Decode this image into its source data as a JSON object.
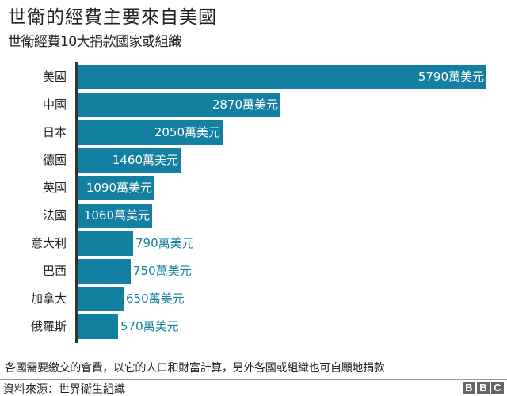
{
  "header": {
    "title": "世衛的經費主要來自美國",
    "subtitle": "世衛經費10大捐款國家或組織"
  },
  "footer": {
    "note": "各國需要繳交的會費，以它的人口和財富計算，另外各國或組織也可自願地捐款",
    "source": "資料來源：世界衛生組織",
    "logo_letters": [
      "B",
      "B",
      "C"
    ]
  },
  "colors": {
    "bar": "#1380a1",
    "label_inside": "#ffffff",
    "label_outside": "#1380a1",
    "axis": "#333333"
  },
  "chart_data": {
    "type": "bar",
    "orientation": "horizontal",
    "title": "世衛的經費主要來自美國",
    "subtitle": "世衛經費10大捐款國家或組織",
    "xlabel": "",
    "ylabel": "",
    "unit": "萬美元",
    "categories": [
      "美國",
      "中國",
      "日本",
      "德國",
      "英國",
      "法國",
      "意大利",
      "巴西",
      "加拿大",
      "俄羅斯"
    ],
    "values": [
      5790,
      2870,
      2050,
      1460,
      1090,
      1060,
      790,
      750,
      650,
      570
    ],
    "labels": [
      "5790萬美元",
      "2870萬美元",
      "2050萬美元",
      "1460萬美元",
      "1090萬美元",
      "1060萬美元",
      "790萬美元",
      "750萬美元",
      "650萬美元",
      "570萬美元"
    ],
    "xlim": [
      0,
      5790
    ],
    "grid": false,
    "legend": null
  }
}
